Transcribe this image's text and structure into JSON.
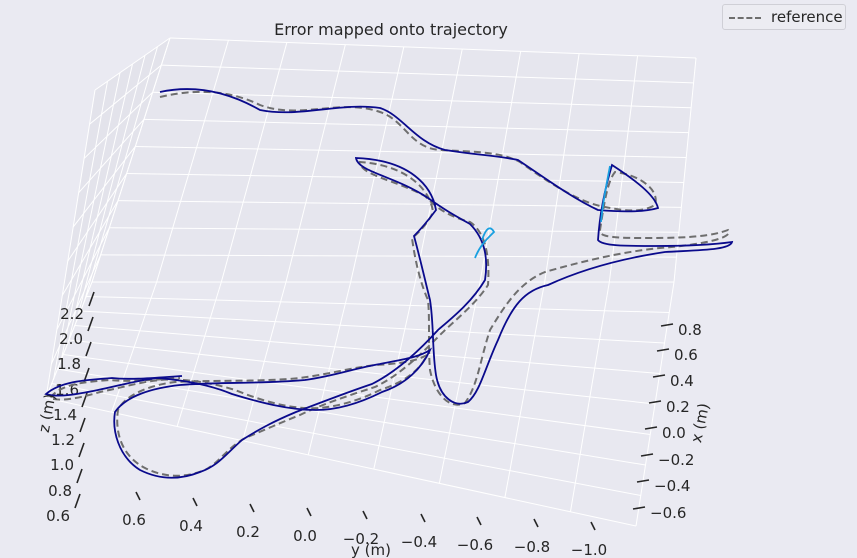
{
  "chart_data": {
    "type": "line",
    "projection": "3d",
    "title": "Error mapped onto trajectory",
    "xlabel": "x (m)",
    "ylabel": "y (m)",
    "zlabel": "z (m)",
    "x_ticks": [
      "0.8",
      "0.6",
      "0.4",
      "0.2",
      "0.0",
      "−0.2",
      "−0.4",
      "−0.6"
    ],
    "y_ticks": [
      "0.6",
      "0.4",
      "0.2",
      "0.0",
      "−0.2",
      "−0.4",
      "−0.6",
      "−0.8",
      "−1.0"
    ],
    "z_ticks": [
      "2.2",
      "2.0",
      "1.8",
      "1.6",
      "1.4",
      "1.2",
      "1.0",
      "0.8",
      "0.6"
    ],
    "grid": true,
    "legend": {
      "position": "top-right",
      "entries": [
        "reference"
      ]
    },
    "series": [
      {
        "name": "reference",
        "style": "dashed",
        "color": "#6e6e6e"
      },
      {
        "style": "solid",
        "colormap": "error",
        "color": "#0a0a8c",
        "highlight_color": "#1aa0e0"
      }
    ]
  }
}
